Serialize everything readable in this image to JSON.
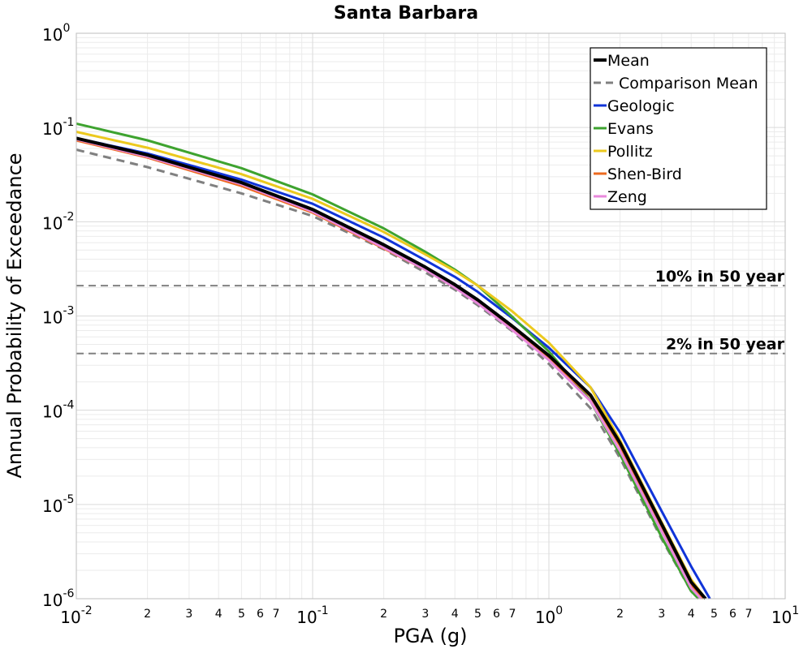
{
  "chart_data": {
    "type": "line",
    "title": "Santa Barbara",
    "xlabel": "PGA (g)",
    "ylabel": "Annual Probability of Exceedance",
    "xscale": "log",
    "yscale": "log",
    "xlim": [
      0.01,
      10
    ],
    "ylim": [
      1e-06,
      1
    ],
    "grid": true,
    "legend_position": "top-right",
    "x_major_ticks": [
      {
        "value": 0.01,
        "base": "10",
        "exp": "-2"
      },
      {
        "value": 0.1,
        "base": "10",
        "exp": "-1"
      },
      {
        "value": 1,
        "base": "10",
        "exp": "0"
      },
      {
        "value": 10,
        "base": "10",
        "exp": "1"
      }
    ],
    "x_minor_ticks": [
      {
        "value": 0.02,
        "label": "2"
      },
      {
        "value": 0.03,
        "label": "3"
      },
      {
        "value": 0.04,
        "label": "4"
      },
      {
        "value": 0.05,
        "label": "5"
      },
      {
        "value": 0.06,
        "label": "6"
      },
      {
        "value": 0.07,
        "label": "7"
      },
      {
        "value": 0.2,
        "label": "2"
      },
      {
        "value": 0.3,
        "label": "3"
      },
      {
        "value": 0.4,
        "label": "4"
      },
      {
        "value": 0.5,
        "label": "5"
      },
      {
        "value": 0.6,
        "label": "6"
      },
      {
        "value": 0.7,
        "label": "7"
      },
      {
        "value": 2,
        "label": "2"
      },
      {
        "value": 3,
        "label": "3"
      },
      {
        "value": 4,
        "label": "4"
      },
      {
        "value": 5,
        "label": "5"
      },
      {
        "value": 6,
        "label": "6"
      },
      {
        "value": 7,
        "label": "7"
      }
    ],
    "y_major_ticks": [
      {
        "value": 1,
        "base": "10",
        "exp": "0"
      },
      {
        "value": 0.1,
        "base": "10",
        "exp": "-1"
      },
      {
        "value": 0.01,
        "base": "10",
        "exp": "-2"
      },
      {
        "value": 0.001,
        "base": "10",
        "exp": "-3"
      },
      {
        "value": 0.0001,
        "base": "10",
        "exp": "-4"
      },
      {
        "value": 1e-05,
        "base": "10",
        "exp": "-5"
      },
      {
        "value": 1e-06,
        "base": "10",
        "exp": "-6"
      }
    ],
    "reference_lines": [
      {
        "label": "10% in 50 year",
        "y": 0.0021,
        "color": "#808080"
      },
      {
        "label": "2% in 50 year",
        "y": 0.0004,
        "color": "#808080"
      }
    ],
    "series": [
      {
        "name": "Mean",
        "color": "#000000",
        "width": 4,
        "dash": "",
        "x": [
          0.01,
          0.02,
          0.05,
          0.1,
          0.2,
          0.3,
          0.4,
          0.5,
          0.7,
          1.0,
          1.5,
          2.0,
          3.0,
          4.0,
          4.6
        ],
        "y": [
          0.077,
          0.051,
          0.026,
          0.0135,
          0.0057,
          0.0033,
          0.00215,
          0.00148,
          0.00078,
          0.00038,
          0.000145,
          4.5e-05,
          6.2e-06,
          1.5e-06,
          1e-06
        ]
      },
      {
        "name": "Comparison Mean",
        "color": "#808080",
        "width": 3,
        "dash": "10,7",
        "x": [
          0.01,
          0.02,
          0.05,
          0.1,
          0.2,
          0.3,
          0.4,
          0.5,
          0.7,
          1.0,
          1.5,
          2.0,
          3.0,
          4.0,
          4.3
        ],
        "y": [
          0.058,
          0.038,
          0.02,
          0.0115,
          0.0051,
          0.0029,
          0.0019,
          0.0013,
          0.00069,
          0.00031,
          0.000105,
          3.1e-05,
          4.3e-06,
          1.2e-06,
          1e-06
        ]
      },
      {
        "name": "Geologic",
        "color": "#1034d8",
        "width": 3,
        "dash": "",
        "x": [
          0.01,
          0.02,
          0.05,
          0.1,
          0.2,
          0.3,
          0.4,
          0.5,
          0.7,
          1.0,
          1.5,
          2.0,
          3.0,
          4.0,
          4.8
        ],
        "y": [
          0.077,
          0.053,
          0.028,
          0.0155,
          0.0068,
          0.0039,
          0.0026,
          0.0018,
          0.00095,
          0.00046,
          0.000175,
          5.8e-05,
          8.5e-06,
          2.2e-06,
          1e-06
        ]
      },
      {
        "name": "Evans",
        "color": "#3ea32f",
        "width": 3,
        "dash": "",
        "x": [
          0.01,
          0.02,
          0.05,
          0.1,
          0.2,
          0.3,
          0.4,
          0.5,
          0.7,
          1.0,
          1.5,
          2.0,
          3.0,
          4.0,
          4.3
        ],
        "y": [
          0.11,
          0.073,
          0.037,
          0.0195,
          0.0085,
          0.0048,
          0.0031,
          0.0021,
          0.00098,
          0.00042,
          0.000125,
          3.4e-05,
          4.5e-06,
          1.2e-06,
          1e-06
        ]
      },
      {
        "name": "Pollitz",
        "color": "#ecc91e",
        "width": 3,
        "dash": "",
        "x": [
          0.01,
          0.02,
          0.05,
          0.1,
          0.2,
          0.3,
          0.4,
          0.5,
          0.7,
          1.0,
          1.5,
          2.0,
          3.0,
          4.0,
          4.6
        ],
        "y": [
          0.09,
          0.061,
          0.032,
          0.0175,
          0.0078,
          0.0045,
          0.003,
          0.0021,
          0.00112,
          0.00052,
          0.000175,
          4.8e-05,
          6.5e-06,
          1.6e-06,
          1e-06
        ]
      },
      {
        "name": "Shen-Bird",
        "color": "#ec6a1f",
        "width": 3,
        "dash": "",
        "x": [
          0.01,
          0.02,
          0.05,
          0.1,
          0.2,
          0.3,
          0.4,
          0.5,
          0.7,
          1.0,
          1.5,
          2.0,
          3.0,
          4.0,
          4.5
        ],
        "y": [
          0.073,
          0.048,
          0.024,
          0.0125,
          0.0052,
          0.0031,
          0.002,
          0.00138,
          0.00073,
          0.00036,
          0.00014,
          4.2e-05,
          5.8e-06,
          1.4e-06,
          1e-06
        ]
      },
      {
        "name": "Zeng",
        "color": "#e888dc",
        "width": 3,
        "dash": "",
        "x": [
          0.01,
          0.02,
          0.05,
          0.1,
          0.2,
          0.3,
          0.4,
          0.5,
          0.7,
          1.0,
          1.5,
          2.0,
          3.0,
          4.0,
          4.4
        ],
        "y": [
          0.075,
          0.049,
          0.025,
          0.0128,
          0.0053,
          0.0031,
          0.002,
          0.00136,
          0.00071,
          0.00034,
          0.000125,
          3.7e-05,
          5.2e-06,
          1.3e-06,
          1e-06
        ]
      }
    ]
  }
}
